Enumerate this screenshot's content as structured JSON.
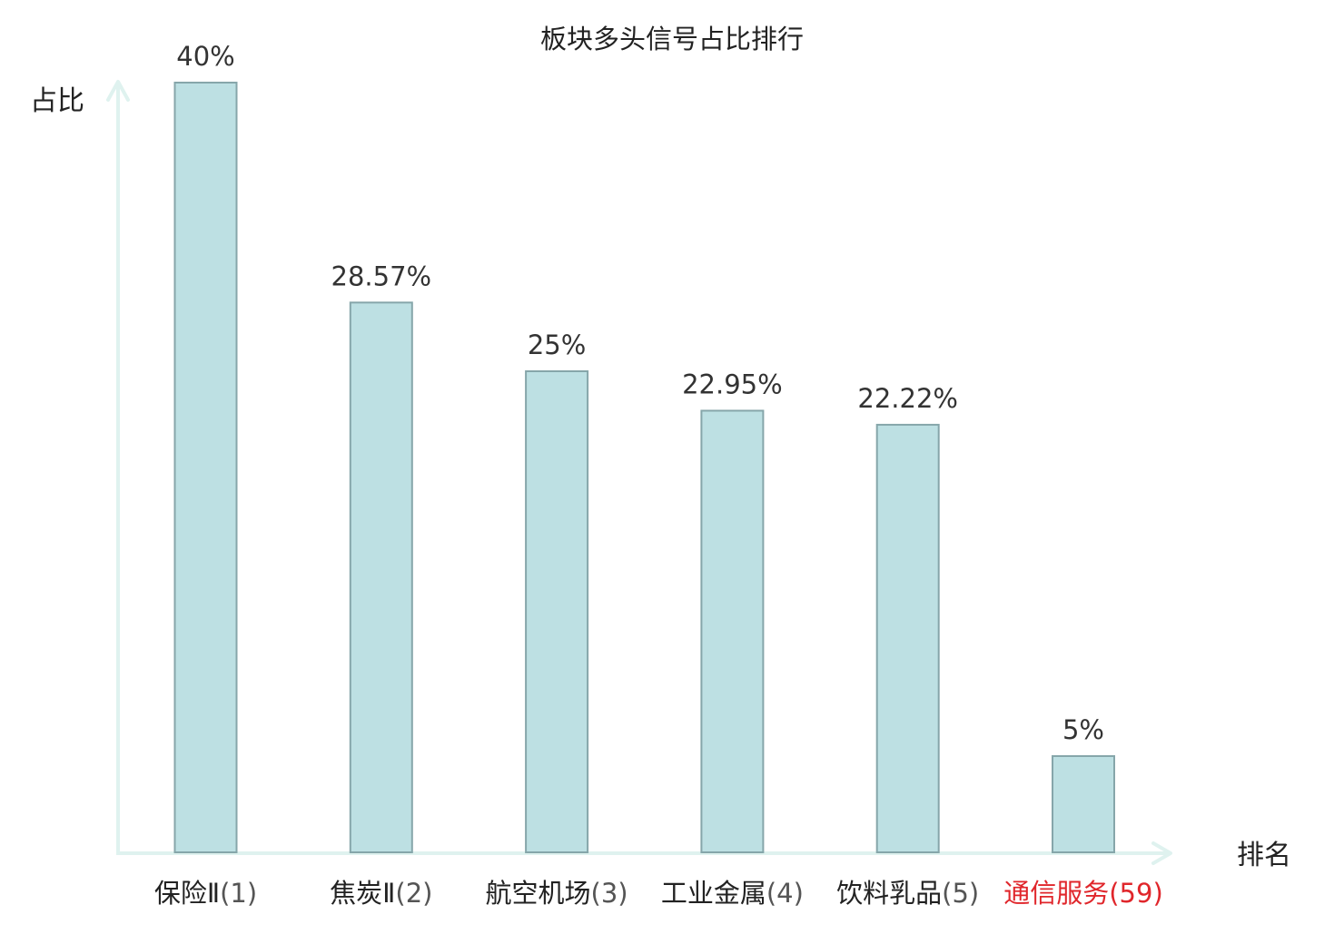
{
  "chart_data": {
    "type": "bar",
    "title": "板块多头信号占比排行",
    "ylabel": "占比",
    "xlabel": "排名",
    "categories": [
      {
        "name": "保险Ⅱ",
        "rank": "(1)",
        "highlight": false
      },
      {
        "name": "焦炭Ⅱ",
        "rank": "(2)",
        "highlight": false
      },
      {
        "name": "航空机场",
        "rank": "(3)",
        "highlight": false
      },
      {
        "name": "工业金属",
        "rank": "(4)",
        "highlight": false
      },
      {
        "name": "饮料乳品",
        "rank": "(5)",
        "highlight": false
      },
      {
        "name": "通信服务",
        "rank": "(59)",
        "highlight": true
      }
    ],
    "values": [
      40,
      28.57,
      25,
      22.95,
      22.22,
      5
    ],
    "value_labels": [
      "40%",
      "28.57%",
      "25%",
      "22.95%",
      "22.22%",
      "5%"
    ],
    "ylim": [
      0,
      40
    ],
    "grid": false,
    "colors": {
      "bar_fill": "#bde0e3",
      "bar_stroke": "#86a6aa",
      "axis": "#dff2ef",
      "highlight": "#e0262b",
      "text": "#222222"
    }
  }
}
